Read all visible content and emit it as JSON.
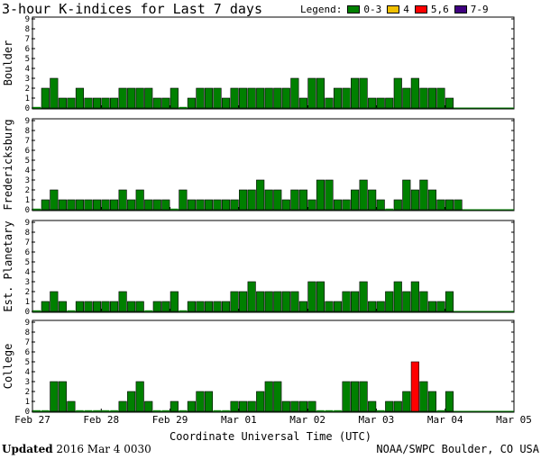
{
  "title": "3-hour K-indices for Last 7 days",
  "legend": {
    "label": "Legend:",
    "items": [
      {
        "label": "0-3",
        "color": "#008000"
      },
      {
        "label": "4",
        "color": "#f0c000"
      },
      {
        "label": "5,6",
        "color": "#ff0000"
      },
      {
        "label": "7-9",
        "color": "#400080"
      }
    ]
  },
  "footer": {
    "updated_label": "Updated",
    "updated_value": "2016 Mar  4 0030",
    "credit": "NOAA/SWPC Boulder, CO USA"
  },
  "chart_data": {
    "type": "bar",
    "xlabel": "Coordinate Universal Time (UTC)",
    "ylim": [
      0,
      9
    ],
    "yticks": [
      "0",
      "1",
      "2",
      "3",
      "4",
      "5",
      "6",
      "7",
      "8",
      "9"
    ],
    "x_tick_labels": [
      "Feb 27",
      "Feb 28",
      "Feb 29",
      "Mar 01",
      "Mar 02",
      "Mar 03",
      "Mar 04",
      "Mar 05"
    ],
    "slots_per_day": 8,
    "grid": false,
    "panels": [
      {
        "name": "Boulder",
        "values": [
          0,
          2,
          3,
          1,
          1,
          2,
          1,
          1,
          1,
          1,
          2,
          2,
          2,
          2,
          1,
          1,
          2,
          0,
          1,
          2,
          2,
          2,
          1,
          2,
          2,
          2,
          2,
          2,
          2,
          2,
          3,
          1,
          3,
          3,
          1,
          2,
          2,
          3,
          3,
          1,
          1,
          1,
          3,
          2,
          3,
          2,
          2,
          2,
          1
        ]
      },
      {
        "name": "Fredericksburg",
        "values": [
          0,
          1,
          2,
          1,
          1,
          1,
          1,
          1,
          1,
          1,
          2,
          1,
          2,
          1,
          1,
          1,
          0,
          2,
          1,
          1,
          1,
          1,
          1,
          1,
          2,
          2,
          3,
          2,
          2,
          1,
          2,
          2,
          1,
          3,
          3,
          1,
          1,
          2,
          3,
          2,
          1,
          0,
          1,
          3,
          2,
          3,
          2,
          1,
          1,
          1
        ]
      },
      {
        "name": "Est. Planetary",
        "values": [
          0,
          1,
          2,
          1,
          0,
          1,
          1,
          1,
          1,
          1,
          2,
          1,
          1,
          0,
          1,
          1,
          2,
          0,
          1,
          1,
          1,
          1,
          1,
          2,
          2,
          3,
          2,
          2,
          2,
          2,
          2,
          1,
          3,
          3,
          1,
          1,
          2,
          2,
          3,
          1,
          1,
          2,
          3,
          2,
          3,
          2,
          1,
          1,
          2
        ]
      },
      {
        "name": "College",
        "values": [
          0,
          0,
          3,
          3,
          1,
          0,
          0,
          0,
          0,
          0,
          1,
          2,
          3,
          1,
          0,
          0,
          1,
          0,
          1,
          2,
          2,
          0,
          0,
          1,
          1,
          1,
          2,
          3,
          3,
          1,
          1,
          1,
          1,
          0,
          0,
          0,
          3,
          3,
          3,
          1,
          0,
          1,
          1,
          2,
          5,
          3,
          2,
          0,
          2
        ]
      }
    ]
  }
}
